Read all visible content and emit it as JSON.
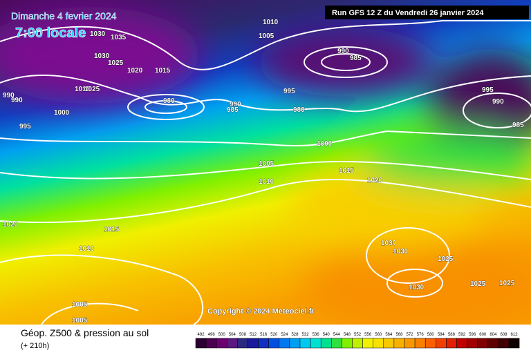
{
  "header": {
    "date": "Dimanche 4 fevrier 2024",
    "time": "7:00 locale",
    "run": "Run GFS 12 Z du Vendredi 26 janvier 2024"
  },
  "copyright": "Copyright © 2024 Meteociel.fr",
  "footer": {
    "title": "Géop. Z500 & pression au sol",
    "lead": "(+ 210h)"
  },
  "isobars": [
    "1030",
    "1035",
    "1030",
    "1025",
    "1020",
    "1015",
    "1010",
    "1005",
    "990",
    "985",
    "995",
    "980",
    "990",
    "985",
    "980",
    "1010",
    "1025",
    "990",
    "990",
    "1000",
    "995",
    "1000",
    "1005",
    "1010",
    "1015",
    "1020",
    "1020",
    "1015",
    "1010",
    "1005",
    "1005",
    "1030",
    "1030",
    "1025",
    "1030",
    "1025",
    "1025",
    "995",
    "990",
    "985"
  ],
  "scale": {
    "labels": [
      492,
      496,
      500,
      504,
      508,
      512,
      516,
      520,
      524,
      528,
      532,
      536,
      540,
      544,
      548,
      552,
      556,
      560,
      564,
      568,
      572,
      576,
      580,
      584,
      588,
      592,
      596,
      600,
      604,
      608,
      612
    ],
    "colors": [
      "#2a0033",
      "#4b0050",
      "#6a0070",
      "#5a1880",
      "#2a2a80",
      "#1a1a9a",
      "#1030c0",
      "#0050e0",
      "#0078f0",
      "#00a0f0",
      "#00c8f0",
      "#00e0d0",
      "#00e090",
      "#30e040",
      "#80f000",
      "#c0f000",
      "#f0f000",
      "#f8e000",
      "#f8c800",
      "#f8b000",
      "#f89800",
      "#f88000",
      "#f86000",
      "#f04000",
      "#e02000",
      "#c00000",
      "#a00000",
      "#800000",
      "#600000",
      "#400000",
      "#100000"
    ]
  }
}
